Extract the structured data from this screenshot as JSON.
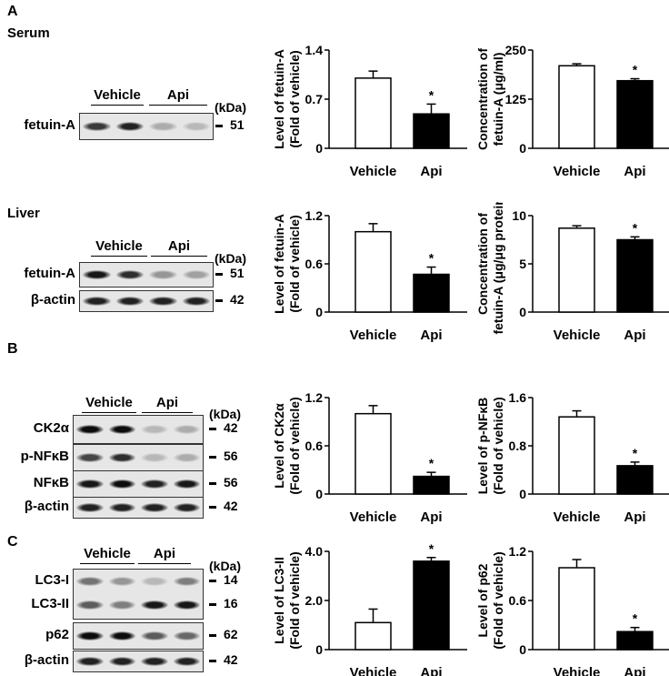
{
  "panels": {
    "a": "A",
    "b": "B",
    "c": "C"
  },
  "sections": {
    "serum": "Serum",
    "liver": "Liver"
  },
  "groups": {
    "vehicle": "Vehicle",
    "api": "Api"
  },
  "kda": "(kDa)",
  "blots": {
    "serum_fetuin": {
      "label": "fetuin-A",
      "mw": "51",
      "bands": [
        0.75,
        0.85,
        0.25,
        0.2
      ]
    },
    "liver_fetuin": {
      "label": "fetuin-A",
      "mw": "51",
      "bands": [
        0.9,
        0.8,
        0.35,
        0.3
      ]
    },
    "liver_actin": {
      "label": "β-actin",
      "mw": "42",
      "bands": [
        0.85,
        0.85,
        0.85,
        0.85
      ]
    },
    "ck2a": {
      "label": "CK2α",
      "mw": "42",
      "bands": [
        0.95,
        0.95,
        0.2,
        0.25
      ]
    },
    "pnfkb": {
      "label": "p-NFκB",
      "mw": "56",
      "bands": [
        0.7,
        0.8,
        0.2,
        0.25
      ]
    },
    "nfkb": {
      "label": "NFκB",
      "mw": "56",
      "bands": [
        0.9,
        0.95,
        0.85,
        0.9
      ]
    },
    "b_actin": {
      "label": "β-actin",
      "mw": "42",
      "bands": [
        0.85,
        0.85,
        0.85,
        0.85
      ]
    },
    "lc3i": {
      "label": "LC3-I",
      "mw": "14",
      "bands": [
        0.5,
        0.35,
        0.2,
        0.45
      ]
    },
    "lc3ii": {
      "label": "LC3-II",
      "mw": "16",
      "bands": [
        0.6,
        0.45,
        0.9,
        0.9
      ]
    },
    "p62": {
      "label": "p62",
      "mw": "62",
      "bands": [
        0.95,
        0.95,
        0.6,
        0.55
      ]
    },
    "c_actin": {
      "label": "β-actin",
      "mw": "42",
      "bands": [
        0.85,
        0.85,
        0.85,
        0.85
      ]
    }
  },
  "chart_data": [
    {
      "type": "bar",
      "ylabel": [
        "Level of fetuin-A",
        "(Fold of vehicle)"
      ],
      "categories": [
        "Vehicle",
        "Api"
      ],
      "values": [
        1.0,
        0.49
      ],
      "errors": [
        0.1,
        0.14
      ],
      "ylim": [
        0,
        1.4
      ],
      "yticks": [
        "0",
        "0.7",
        "1.4"
      ],
      "significance": [
        "",
        "*"
      ],
      "colors": [
        "#ffffff",
        "#000000"
      ]
    },
    {
      "type": "bar",
      "ylabel": [
        "Concentration of",
        "fetuin-A (μg/ml)"
      ],
      "categories": [
        "Vehicle",
        "Api"
      ],
      "values": [
        210,
        172
      ],
      "errors": [
        5,
        5
      ],
      "ylim": [
        0,
        250
      ],
      "yticks": [
        "0",
        "125",
        "250"
      ],
      "significance": [
        "",
        "*"
      ],
      "colors": [
        "#ffffff",
        "#000000"
      ]
    },
    {
      "type": "bar",
      "ylabel": [
        "Level of fetuin-A",
        "(Fold of vehicle)"
      ],
      "categories": [
        "Vehicle",
        "Api"
      ],
      "values": [
        1.0,
        0.47
      ],
      "errors": [
        0.1,
        0.09
      ],
      "ylim": [
        0,
        1.2
      ],
      "yticks": [
        "0",
        "0.6",
        "1.2"
      ],
      "significance": [
        "",
        "*"
      ],
      "colors": [
        "#ffffff",
        "#000000"
      ]
    },
    {
      "type": "bar",
      "ylabel": [
        "Concentration of",
        "fetuin-A (μg/μg protein)"
      ],
      "categories": [
        "Vehicle",
        "Api"
      ],
      "values": [
        8.7,
        7.5
      ],
      "errors": [
        0.25,
        0.3
      ],
      "ylim": [
        0,
        10
      ],
      "yticks": [
        "0",
        "5",
        "10"
      ],
      "significance": [
        "",
        "*"
      ],
      "colors": [
        "#ffffff",
        "#000000"
      ]
    },
    {
      "type": "bar",
      "ylabel": [
        "Level of CK2α",
        "(Fold of vehicle)"
      ],
      "categories": [
        "Vehicle",
        "Api"
      ],
      "values": [
        1.0,
        0.22
      ],
      "errors": [
        0.1,
        0.05
      ],
      "ylim": [
        0,
        1.2
      ],
      "yticks": [
        "0",
        "0.6",
        "1.2"
      ],
      "significance": [
        "",
        "*"
      ],
      "colors": [
        "#ffffff",
        "#000000"
      ]
    },
    {
      "type": "bar",
      "ylabel": [
        "Level of p-NFκB",
        "(Fold of vehicle)"
      ],
      "categories": [
        "Vehicle",
        "Api"
      ],
      "values": [
        1.28,
        0.47
      ],
      "errors": [
        0.1,
        0.06
      ],
      "ylim": [
        0,
        1.6
      ],
      "yticks": [
        "0",
        "0.8",
        "1.6"
      ],
      "significance": [
        "",
        "*"
      ],
      "colors": [
        "#ffffff",
        "#000000"
      ]
    },
    {
      "type": "bar",
      "ylabel": [
        "Level of LC3-II",
        "(Fold of vehicle)"
      ],
      "categories": [
        "Vehicle",
        "Api"
      ],
      "values": [
        1.1,
        3.6
      ],
      "errors": [
        0.55,
        0.15
      ],
      "ylim": [
        0,
        4.0
      ],
      "yticks": [
        "0",
        "2.0",
        "4.0"
      ],
      "significance": [
        "",
        "*"
      ],
      "colors": [
        "#ffffff",
        "#000000"
      ]
    },
    {
      "type": "bar",
      "ylabel": [
        "Level of p62",
        "(Fold of vehicle)"
      ],
      "categories": [
        "Vehicle",
        "Api"
      ],
      "values": [
        1.0,
        0.22
      ],
      "errors": [
        0.1,
        0.05
      ],
      "ylim": [
        0,
        1.2
      ],
      "yticks": [
        "0",
        "0.6",
        "1.2"
      ],
      "significance": [
        "",
        "*"
      ],
      "colors": [
        "#ffffff",
        "#000000"
      ]
    }
  ]
}
